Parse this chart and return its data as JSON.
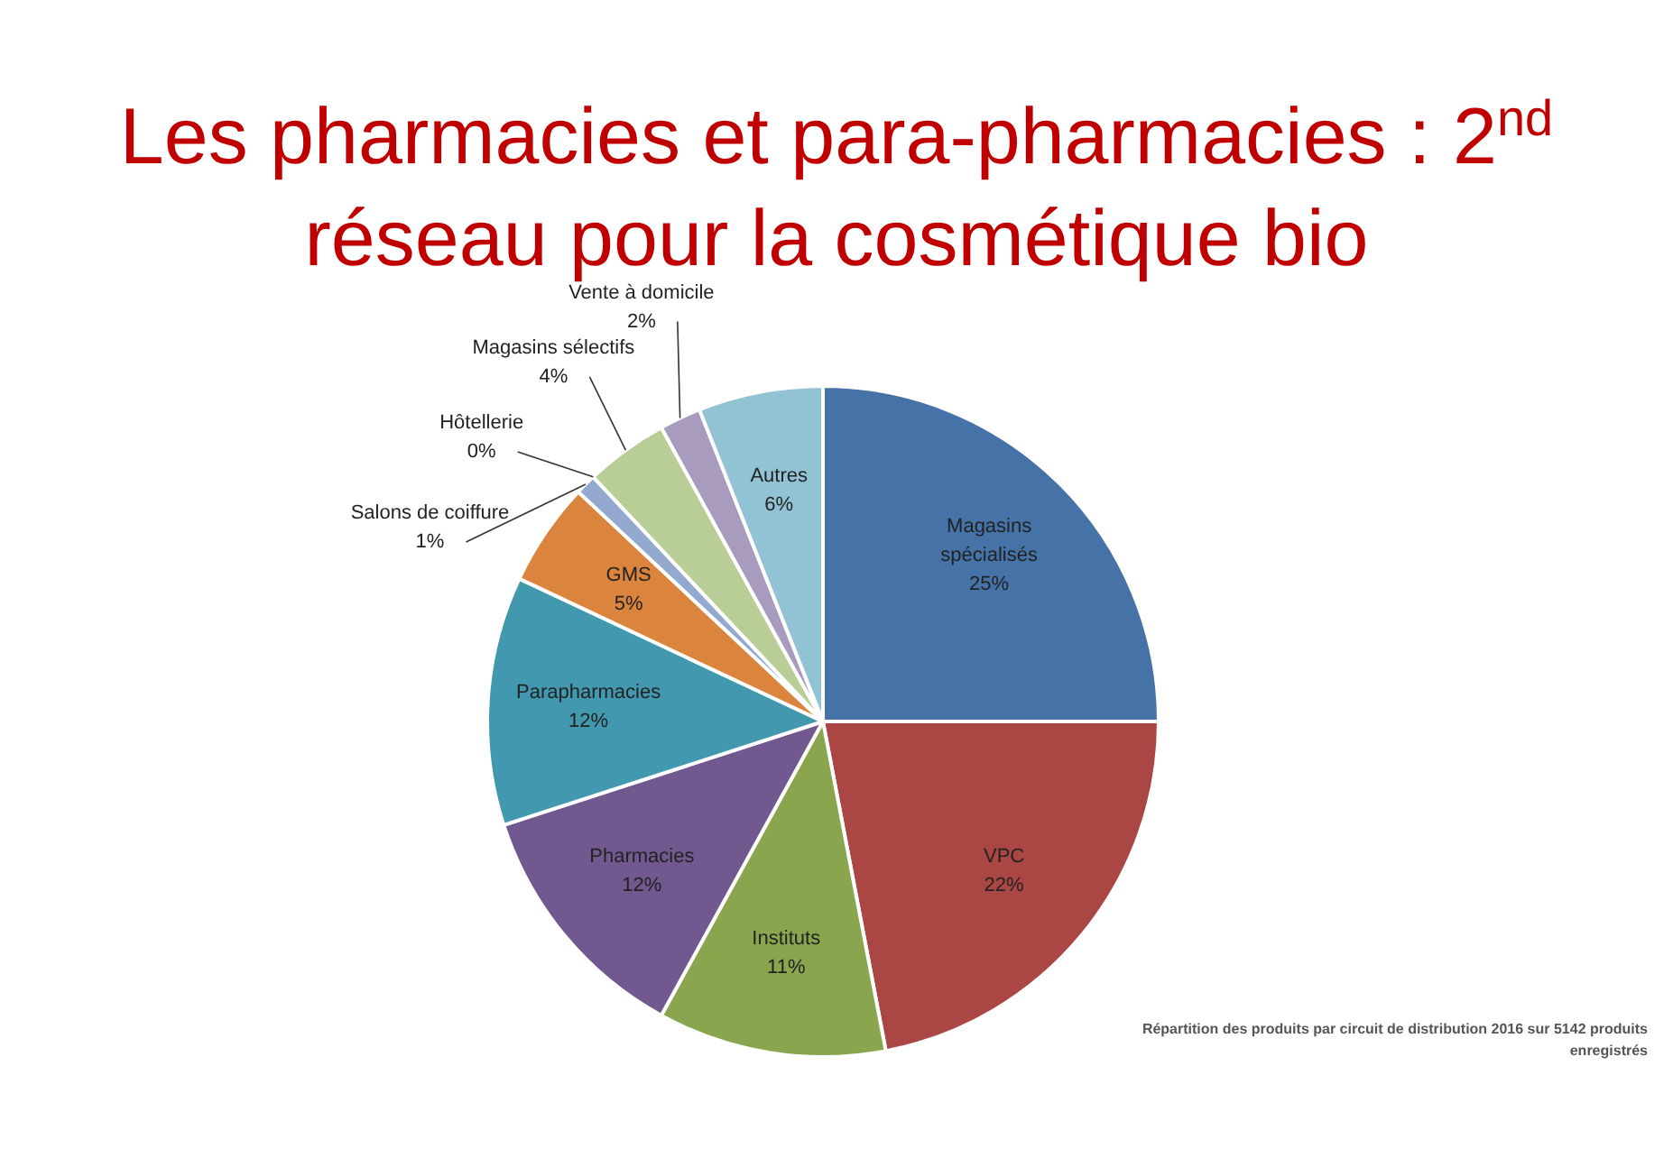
{
  "chart_data": {
    "type": "pie",
    "title": "Les pharmacies et para-pharmacies : 2$^{nd}$ réseau pour la cosmétique bio",
    "categories": [
      "Magasins spécialisés",
      "VPC",
      "Instituts",
      "Pharmacies",
      "Parapharmacies",
      "GMS",
      "Salons de coiffure",
      "Hôtellerie",
      "Magasins sélectifs",
      "Vente à domicile",
      "Autres"
    ],
    "values": [
      25,
      22,
      11,
      12,
      12,
      5,
      1,
      0,
      4,
      2,
      6
    ],
    "value_labels": [
      "25%",
      "22%",
      "11%",
      "12%",
      "12%",
      "5%",
      "1%",
      "0%",
      "4%",
      "2%",
      "6%"
    ],
    "colors": [
      "#4572a7",
      "#aa4643",
      "#89a54e",
      "#71588f",
      "#4198af",
      "#db843d",
      "#93a9cf",
      "#d19392",
      "#b9cd96",
      "#a99bbd",
      "#92c3d4"
    ],
    "legend": false,
    "annotations": [
      "Répartition des produits par circuit de  distribution 2016 sur 5142 produits enregistrés"
    ]
  }
}
